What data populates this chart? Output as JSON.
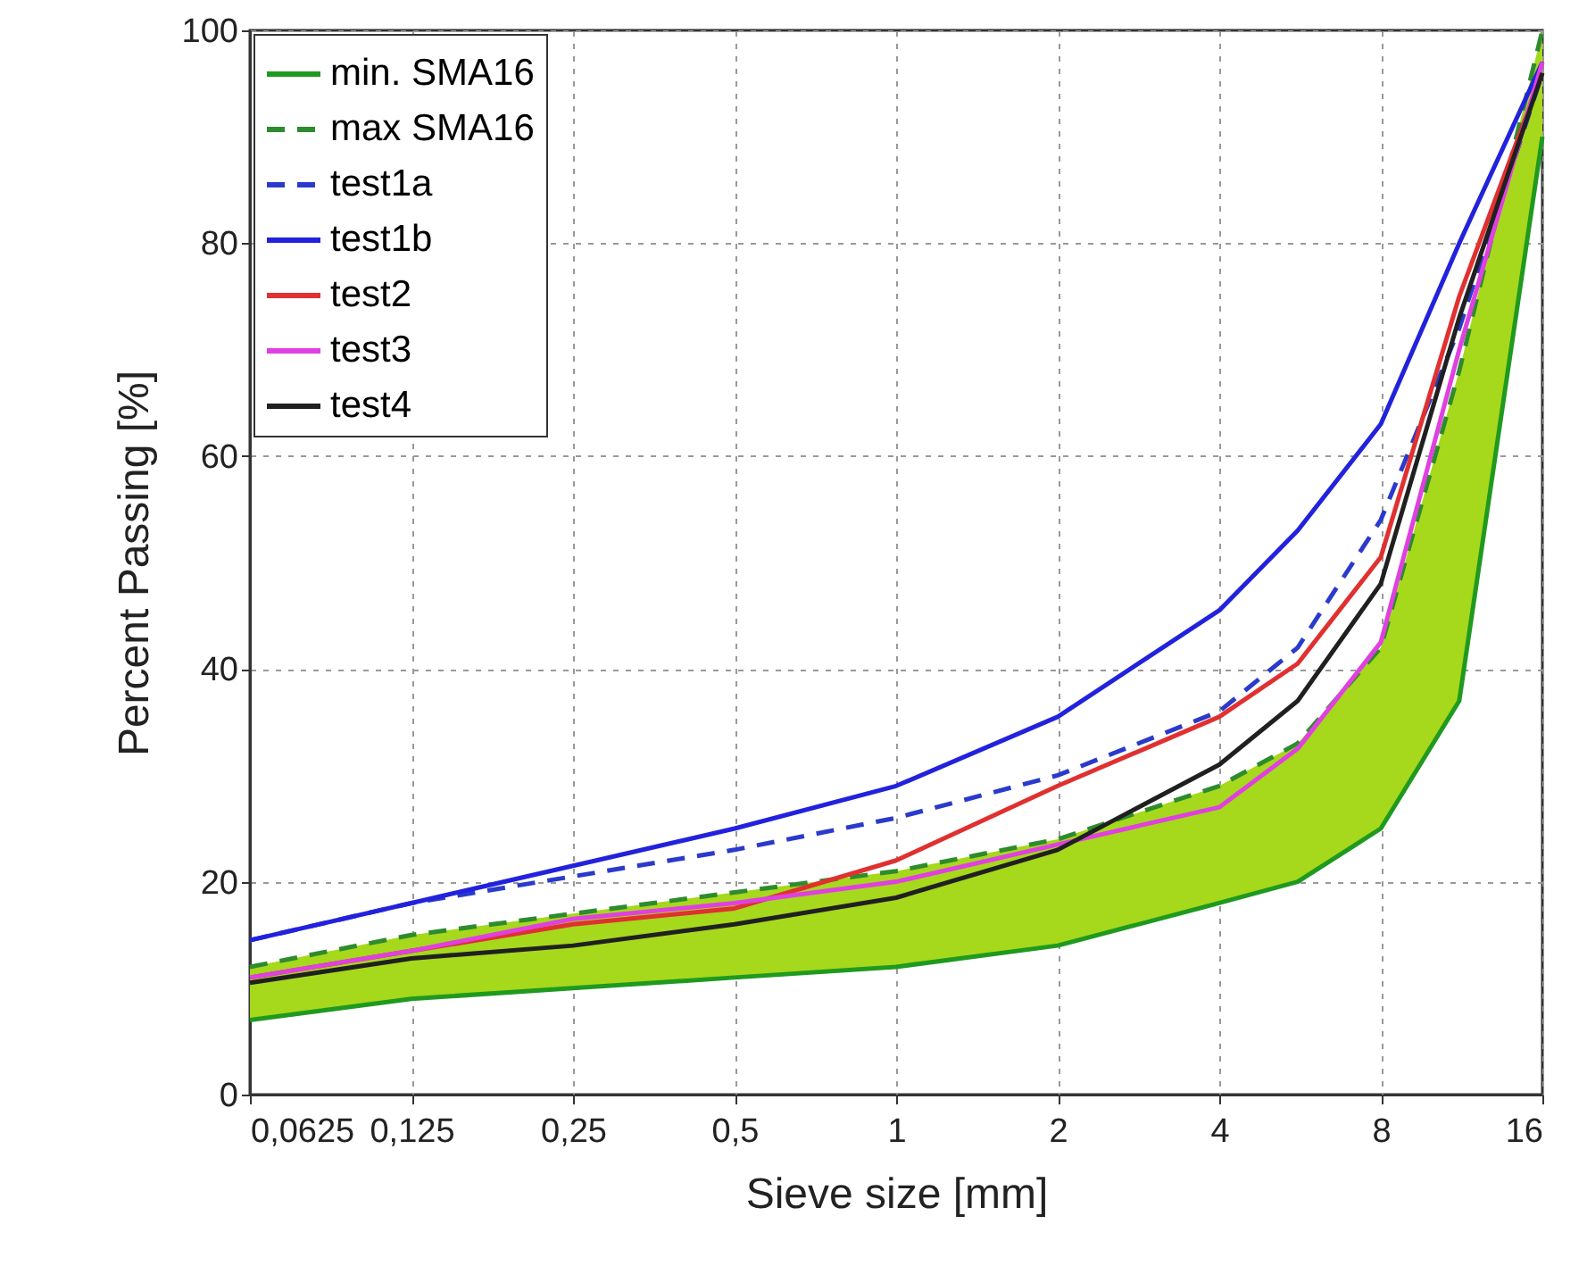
{
  "chart_data": {
    "type": "line",
    "xlabel": "Sieve size [mm]",
    "ylabel": "Percent Passing [%]",
    "x": [
      0.0625,
      0.125,
      0.25,
      0.5,
      1,
      2,
      4,
      5.6,
      8,
      11.2,
      16
    ],
    "log": "x",
    "xlim": [
      0.0625,
      16
    ],
    "xticks": [
      {
        "value": 0.0625,
        "label": "0,0625"
      },
      {
        "value": 0.125,
        "label": "0,125"
      },
      {
        "value": 0.25,
        "label": "0,25"
      },
      {
        "value": 0.5,
        "label": "0,5"
      },
      1,
      2,
      4,
      8,
      16
    ],
    "ylim": [
      0,
      100
    ],
    "yticks": [
      0,
      20,
      40,
      60,
      80,
      100
    ],
    "grid": true,
    "legend": "top left",
    "series": [
      {
        "name": "min. SMA16",
        "color": "#1f9a1f",
        "line_style": "solid",
        "values": [
          7,
          9,
          10,
          11,
          12,
          14,
          18,
          20,
          25,
          37,
          90
        ]
      },
      {
        "name": "max SMA16",
        "color": "#2e8b2e",
        "line_style": "dashed",
        "values": [
          12,
          15,
          17,
          19,
          21,
          24,
          29,
          33,
          42,
          68,
          100
        ],
        "lower": [
          7,
          9,
          10,
          11,
          12,
          14,
          18,
          20,
          25,
          37,
          90
        ],
        "upper": [
          12,
          15,
          17,
          19,
          21,
          24,
          29,
          33,
          42,
          68,
          100
        ]
      },
      {
        "name": "test1a",
        "color": "#2a3acc",
        "line_style": "dashed",
        "values": [
          14.5,
          18,
          20.5,
          23,
          26,
          30,
          36,
          42,
          54,
          72,
          96
        ]
      },
      {
        "name": "test1b",
        "color": "#2222dd",
        "line_style": "solid",
        "values": [
          14.5,
          18,
          21.5,
          25,
          29,
          35.5,
          45.5,
          53,
          63,
          80,
          97
        ]
      },
      {
        "name": "test2",
        "color": "#e03030",
        "line_style": "solid",
        "values": [
          11,
          13.5,
          16,
          17.5,
          22,
          29,
          35.5,
          40.5,
          50.5,
          75,
          96
        ]
      },
      {
        "name": "test3",
        "color": "#e040e0",
        "line_style": "solid",
        "values": [
          11,
          13.5,
          16.5,
          18,
          20,
          23.5,
          27,
          32.5,
          42.5,
          70,
          97
        ]
      },
      {
        "name": "test4",
        "color": "#202020",
        "line_style": "solid",
        "values": [
          10.5,
          12.8,
          14,
          16,
          18.5,
          23,
          31,
          37,
          48,
          73,
          96
        ]
      }
    ]
  }
}
